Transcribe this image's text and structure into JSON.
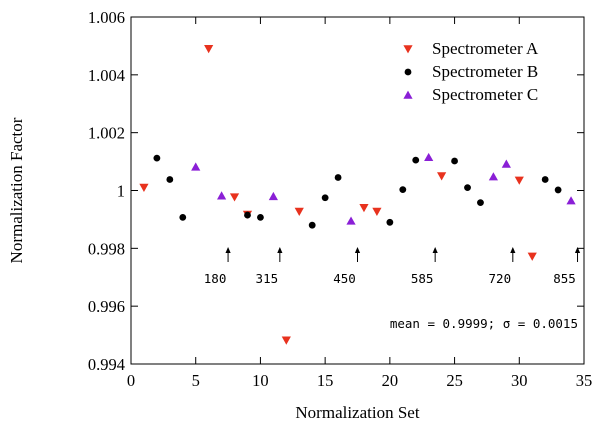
{
  "chart_data": {
    "type": "scatter",
    "xlabel": "Normalization Set",
    "ylabel": "Normalization Factor",
    "xlim": [
      0,
      35
    ],
    "ylim": [
      0.994,
      1.006
    ],
    "x_ticks": [
      0,
      5,
      10,
      15,
      20,
      25,
      30,
      35
    ],
    "y_ticks": [
      0.994,
      0.996,
      0.998,
      1,
      1.002,
      1.004,
      1.006
    ],
    "x_tick_labels": [
      "0",
      "5",
      "10",
      "15",
      "20",
      "25",
      "30",
      "35"
    ],
    "y_tick_labels": [
      "0.994",
      "0.996",
      "0.998",
      "1",
      "1.002",
      "1.004",
      "1.006"
    ],
    "legend_position": "top-right",
    "series": [
      {
        "name": "Spectrometer A",
        "marker": "triangle-down",
        "color": "#e8321e",
        "points": [
          [
            1,
            1.0001
          ],
          [
            6,
            1.0049
          ],
          [
            8,
            0.99977
          ],
          [
            9,
            0.99917
          ],
          [
            12,
            0.99482
          ],
          [
            13,
            0.99927
          ],
          [
            18,
            0.9994
          ],
          [
            19,
            0.99927
          ],
          [
            24,
            1.0005
          ],
          [
            30,
            1.00035
          ],
          [
            31,
            0.99772
          ]
        ]
      },
      {
        "name": "Spectrometer B",
        "marker": "circle",
        "color": "#000000",
        "points": [
          [
            2,
            1.00112
          ],
          [
            3,
            1.00038
          ],
          [
            4,
            0.99907
          ],
          [
            9,
            0.99915
          ],
          [
            10,
            0.99907
          ],
          [
            14,
            0.9988
          ],
          [
            15,
            0.99975
          ],
          [
            16,
            1.00045
          ],
          [
            20,
            0.9989
          ],
          [
            21,
            1.00003
          ],
          [
            22,
            1.00105
          ],
          [
            25,
            1.00102
          ],
          [
            26,
            1.0001
          ],
          [
            27,
            0.99958
          ],
          [
            32,
            1.00038
          ],
          [
            33,
            1.00002
          ]
        ]
      },
      {
        "name": "Spectrometer C",
        "marker": "triangle-up",
        "color": "#8a1fd6",
        "points": [
          [
            5,
            1.00082
          ],
          [
            7,
            0.99982
          ],
          [
            11,
            0.9998
          ],
          [
            17,
            0.99895
          ],
          [
            23,
            1.00115
          ],
          [
            28,
            1.00048
          ],
          [
            29,
            1.00092
          ],
          [
            34,
            0.99965
          ]
        ]
      }
    ],
    "markers": [
      {
        "x": 7.5,
        "label": "180"
      },
      {
        "x": 11.5,
        "label": "315"
      },
      {
        "x": 17.5,
        "label": "450"
      },
      {
        "x": 23.5,
        "label": "585"
      },
      {
        "x": 29.5,
        "label": "720"
      },
      {
        "x": 34.5,
        "label": "855"
      }
    ],
    "annotation": "mean = 0.9999; σ = 0.0015"
  }
}
